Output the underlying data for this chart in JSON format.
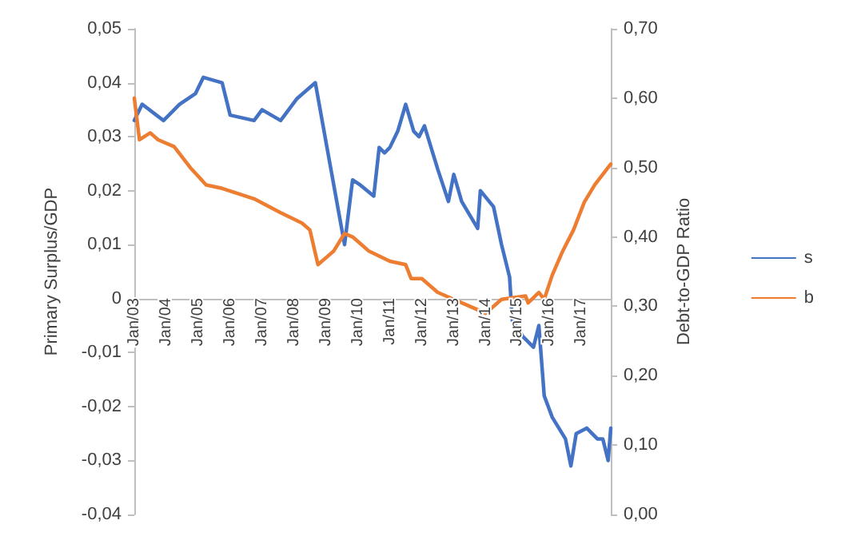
{
  "chart_data": {
    "type": "line",
    "ylabel": "Primary Surplus/GDP",
    "y2label": "Debt-to-GDP Ratio",
    "xlim": [
      "2003-01",
      "2017-12"
    ],
    "xticks": [
      {
        "value": "2003-01",
        "label": "Jan/03"
      },
      {
        "value": "2004-01",
        "label": "Jan/04"
      },
      {
        "value": "2005-01",
        "label": "Jan/05"
      },
      {
        "value": "2006-01",
        "label": "Jan/06"
      },
      {
        "value": "2007-01",
        "label": "Jan/07"
      },
      {
        "value": "2008-01",
        "label": "Jan/08"
      },
      {
        "value": "2009-01",
        "label": "Jan/09"
      },
      {
        "value": "2010-01",
        "label": "Jan/10"
      },
      {
        "value": "2011-01",
        "label": "Jan/11"
      },
      {
        "value": "2012-01",
        "label": "Jan/12"
      },
      {
        "value": "2013-01",
        "label": "Jan/13"
      },
      {
        "value": "2014-01",
        "label": "Jan/14"
      },
      {
        "value": "2015-01",
        "label": "Jan/15"
      },
      {
        "value": "2016-01",
        "label": "Jan/16"
      },
      {
        "value": "2017-01",
        "label": "Jan/17"
      }
    ],
    "ylim": [
      -0.04,
      0.05
    ],
    "yticks": [
      {
        "value": -0.04,
        "label": "-0,04"
      },
      {
        "value": -0.03,
        "label": "-0,03"
      },
      {
        "value": -0.02,
        "label": "-0,02"
      },
      {
        "value": -0.01,
        "label": "-0,01"
      },
      0,
      {
        "value": 0.01,
        "label": "0,01"
      },
      {
        "value": 0.02,
        "label": "0,02"
      },
      {
        "value": 0.03,
        "label": "0,03"
      },
      {
        "value": 0.04,
        "label": "0,04"
      },
      {
        "value": 0.05,
        "label": "0,05"
      }
    ],
    "y2lim": [
      0,
      0.7
    ],
    "y2ticks": [
      {
        "value": 0,
        "label": "0,00"
      },
      {
        "value": 0.1,
        "label": "0,10"
      },
      {
        "value": 0.2,
        "label": "0,20"
      },
      {
        "value": 0.3,
        "label": "0,30"
      },
      {
        "value": 0.4,
        "label": "0,40"
      },
      {
        "value": 0.5,
        "label": "0,50"
      },
      {
        "value": 0.6,
        "label": "0,60"
      },
      {
        "value": 0.7,
        "label": "0,70"
      }
    ],
    "grid": false,
    "legend": "right",
    "marker": "none",
    "line_style": "solid",
    "series": [
      {
        "name": "s",
        "color": "#4472c4",
        "x": [
          "2003-01",
          "2003-04",
          "2003-12",
          "2004-06",
          "2004-12",
          "2005-03",
          "2005-10",
          "2006-01",
          "2006-10",
          "2007-01",
          "2007-08",
          "2008-02",
          "2008-09",
          "2009-01",
          "2009-08",
          "2009-11",
          "2010-02",
          "2010-07",
          "2010-09",
          "2010-11",
          "2011-01",
          "2011-04",
          "2011-07",
          "2011-10",
          "2011-12",
          "2012-02",
          "2012-07",
          "2012-11",
          "2013-01",
          "2013-04",
          "2013-10",
          "2013-11",
          "2014-04",
          "2014-07",
          "2014-10",
          "2014-11",
          "2015-03",
          "2015-07",
          "2015-09",
          "2015-11",
          "2016-02",
          "2016-07",
          "2016-09",
          "2016-11",
          "2017-03",
          "2017-07",
          "2017-09",
          "2017-11",
          "2017-12"
        ],
        "values": [
          0.033,
          0.036,
          0.033,
          0.036,
          0.038,
          0.041,
          0.04,
          0.034,
          0.033,
          0.035,
          0.033,
          0.037,
          0.04,
          0.029,
          0.01,
          0.022,
          0.021,
          0.019,
          0.028,
          0.027,
          0.028,
          0.031,
          0.036,
          0.031,
          0.03,
          0.032,
          0.024,
          0.018,
          0.023,
          0.018,
          0.013,
          0.02,
          0.017,
          0.01,
          0.004,
          -0.004,
          -0.007,
          -0.009,
          -0.005,
          -0.018,
          -0.022,
          -0.026,
          -0.031,
          -0.025,
          -0.024,
          -0.026,
          -0.026,
          -0.03,
          -0.024
        ]
      },
      {
        "name": "b",
        "color": "#ed7d31",
        "axis": "y2",
        "x": [
          "2003-01",
          "2003-03",
          "2003-07",
          "2003-10",
          "2004-04",
          "2004-10",
          "2005-04",
          "2005-10",
          "2006-10",
          "2007-08",
          "2008-04",
          "2008-07",
          "2008-10",
          "2009-01",
          "2009-04",
          "2009-08",
          "2009-11",
          "2010-02",
          "2010-05",
          "2011-01",
          "2011-07",
          "2011-09",
          "2012-01",
          "2012-07",
          "2013-01",
          "2013-07",
          "2014-01",
          "2014-07",
          "2015-04",
          "2015-05",
          "2015-09",
          "2015-11",
          "2016-02",
          "2016-06",
          "2016-10",
          "2017-02",
          "2017-06",
          "2017-11",
          "2017-12"
        ],
        "values": [
          0.6,
          0.54,
          0.55,
          0.54,
          0.53,
          0.5,
          0.475,
          0.47,
          0.455,
          0.435,
          0.42,
          0.41,
          0.36,
          0.37,
          0.38,
          0.405,
          0.4,
          0.39,
          0.38,
          0.365,
          0.36,
          0.34,
          0.34,
          0.32,
          0.31,
          0.3,
          0.29,
          0.31,
          0.315,
          0.305,
          0.32,
          0.31,
          0.345,
          0.38,
          0.41,
          0.45,
          0.475,
          0.5,
          0.505
        ]
      }
    ]
  }
}
